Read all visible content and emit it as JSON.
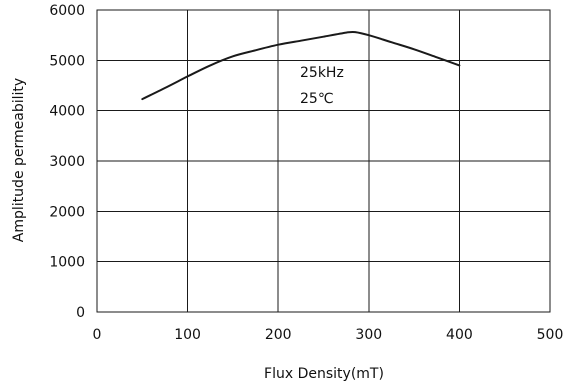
{
  "chart_data": {
    "type": "line",
    "title": "",
    "xlabel": "Flux Density(mT)",
    "ylabel": "Amplitude permeability",
    "xlim": [
      0,
      500
    ],
    "ylim": [
      0,
      6000
    ],
    "x_ticks": [
      0,
      100,
      200,
      300,
      400,
      500
    ],
    "y_ticks": [
      0,
      1000,
      2000,
      3000,
      4000,
      5000,
      6000
    ],
    "x_tick_labels": [
      "0",
      "100",
      "200",
      "300",
      "400",
      "500"
    ],
    "y_tick_labels": [
      "0",
      "1000",
      "2000",
      "3000",
      "4000",
      "5000",
      "6000"
    ],
    "grid": true,
    "legend": "none",
    "annotations": [
      "25kHz",
      "25℃"
    ],
    "series": [
      {
        "color": "#1a1a1a",
        "x": [
          50,
          75,
          100,
          125,
          150,
          175,
          200,
          225,
          250,
          275,
          285,
          300,
          325,
          350,
          375,
          400
        ],
        "y": [
          4230,
          4450,
          4680,
          4900,
          5080,
          5200,
          5310,
          5390,
          5470,
          5550,
          5560,
          5500,
          5360,
          5220,
          5060,
          4900
        ]
      }
    ]
  }
}
